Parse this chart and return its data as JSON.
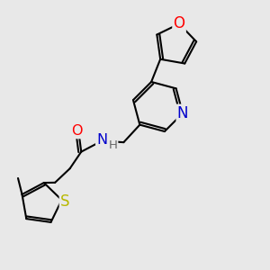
{
  "bg_color": "#e8e8e8",
  "bond_color": "#000000",
  "O_color": "#ff0000",
  "N_color": "#0000cc",
  "S_color": "#b8b800",
  "bond_lw": 1.5,
  "dbo": 0.12,
  "fs": 11,
  "xlim": [
    0,
    10
  ],
  "ylim": [
    0,
    10
  ]
}
